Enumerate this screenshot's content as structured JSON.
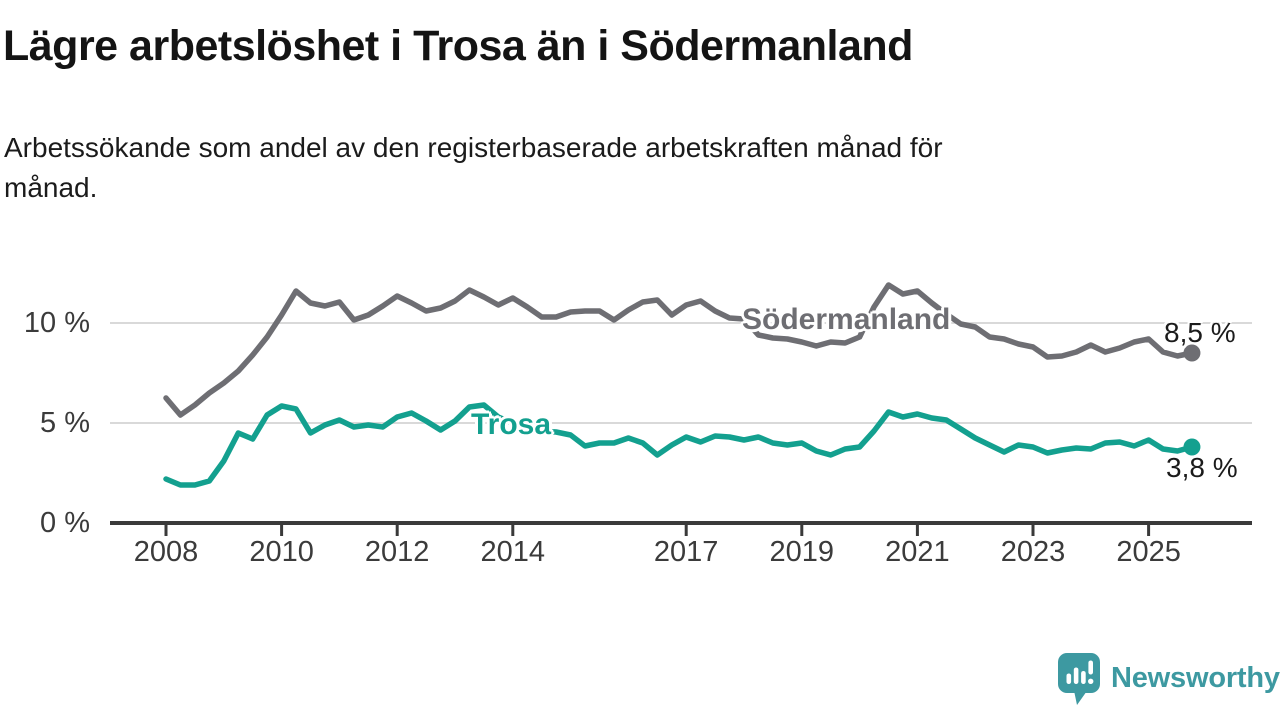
{
  "title": "Lägre arbetslöshet i Trosa än i Södermanland",
  "subtitle": {
    "line1": "Arbetssökande som andel av den registerbaserade arbetskraften månad för",
    "line2": "månad."
  },
  "branding": {
    "logo_text": "Newsworthy",
    "logo_color": "#3d99a1"
  },
  "chart_data": {
    "type": "line",
    "title": "Lägre arbetslöshet i Trosa än i Södermanland",
    "subtitle": "Arbetssökande som andel av den registerbaserade arbetskraften månad för månad.",
    "xlabel": "",
    "ylabel": "",
    "unit": "%",
    "xlim": [
      2007.0,
      2026.8
    ],
    "ylim": [
      0,
      12.5
    ],
    "grid": "horizontal",
    "legend": "inline-labels",
    "grid_color": "#d9d9d9",
    "axis_color": "#3a3a3a",
    "tick_label_color": "#3b3b3b",
    "x_ticks": [
      {
        "value": 2008,
        "label": "2008"
      },
      {
        "value": 2010,
        "label": "2010"
      },
      {
        "value": 2012,
        "label": "2012"
      },
      {
        "value": 2014,
        "label": "2014"
      },
      {
        "value": 2017,
        "label": "2017"
      },
      {
        "value": 2019,
        "label": "2019"
      },
      {
        "value": 2021,
        "label": "2021"
      },
      {
        "value": 2023,
        "label": "2023"
      },
      {
        "value": 2025,
        "label": "2025"
      }
    ],
    "y_ticks": [
      {
        "value": 0,
        "label": "0 %"
      },
      {
        "value": 5,
        "label": "5 %"
      },
      {
        "value": 10,
        "label": "10 %"
      }
    ],
    "x_start": 2008.0,
    "x_step": 0.25,
    "series": [
      {
        "name": "Södermanland",
        "color": "#6e6e73",
        "end_label": "8,5 %",
        "end_value": 8.5,
        "values": [
          6.25,
          5.4,
          5.9,
          6.5,
          7.0,
          7.6,
          8.4,
          9.3,
          10.4,
          11.6,
          11.0,
          10.85,
          11.05,
          10.15,
          10.4,
          10.85,
          11.35,
          11.0,
          10.6,
          10.75,
          11.1,
          11.65,
          11.3,
          10.9,
          11.25,
          10.8,
          10.3,
          10.3,
          10.55,
          10.6,
          10.6,
          10.15,
          10.65,
          11.05,
          11.15,
          10.4,
          10.9,
          11.1,
          10.6,
          10.25,
          10.2,
          9.4,
          9.25,
          9.2,
          9.05,
          8.85,
          9.05,
          9.0,
          9.3,
          10.8,
          11.9,
          11.45,
          11.6,
          11.0,
          10.45,
          9.95,
          9.8,
          9.3,
          9.2,
          8.95,
          8.8,
          8.3,
          8.35,
          8.55,
          8.9,
          8.55,
          8.75,
          9.05,
          9.2,
          8.55,
          8.35,
          8.5
        ]
      },
      {
        "name": "Trosa",
        "color": "#13a08f",
        "end_label": "3,8 %",
        "end_value": 3.8,
        "values": [
          2.2,
          1.9,
          1.9,
          2.1,
          3.1,
          4.5,
          4.2,
          5.4,
          5.85,
          5.7,
          4.5,
          4.9,
          5.15,
          4.8,
          4.9,
          4.8,
          5.3,
          5.5,
          5.1,
          4.65,
          5.1,
          5.8,
          5.9,
          5.3,
          5.0,
          4.8,
          4.6,
          4.55,
          4.4,
          3.85,
          4.0,
          4.0,
          4.25,
          4.0,
          3.4,
          3.9,
          4.3,
          4.05,
          4.35,
          4.3,
          4.15,
          4.3,
          4.0,
          3.9,
          4.0,
          3.6,
          3.4,
          3.7,
          3.8,
          4.6,
          5.55,
          5.3,
          5.45,
          5.25,
          5.15,
          4.7,
          4.25,
          3.9,
          3.55,
          3.9,
          3.8,
          3.5,
          3.65,
          3.75,
          3.7,
          4.0,
          4.05,
          3.85,
          4.15,
          3.7,
          3.6,
          3.8
        ]
      }
    ]
  }
}
